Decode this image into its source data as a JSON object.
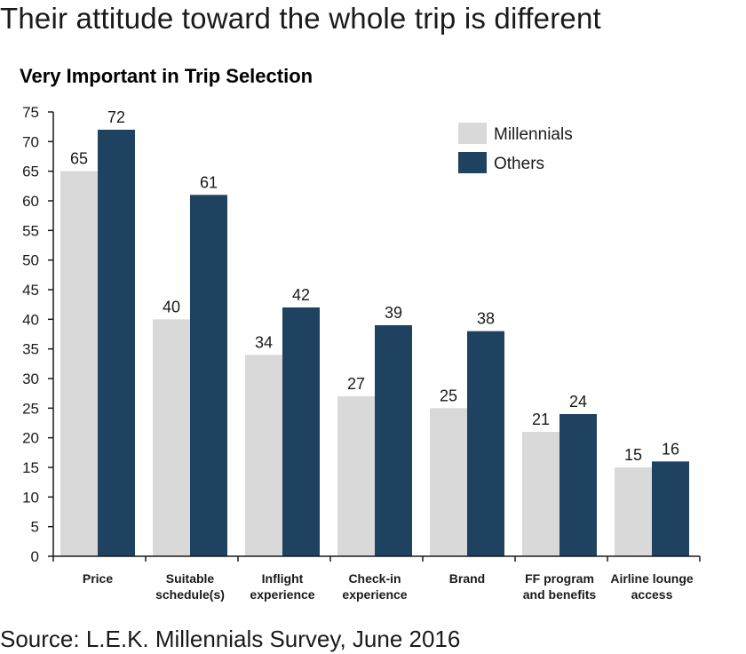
{
  "headline": "Their attitude toward the whole trip is different",
  "source": "Source: L.E.K. Millennials Survey, June 2016",
  "colors": {
    "millennials": "#d9d9d9",
    "others": "#1e4260",
    "axis": "#1a1a1a"
  },
  "chart_data": {
    "type": "bar",
    "title": "Very Important in Trip Selection",
    "xlabel": "",
    "ylabel": "",
    "ylim": [
      0,
      75
    ],
    "yticks": [
      0,
      5,
      10,
      15,
      20,
      25,
      30,
      35,
      40,
      45,
      50,
      55,
      60,
      65,
      70,
      75
    ],
    "grid": false,
    "legend": "top-right",
    "categories": [
      [
        "Price"
      ],
      [
        "Suitable",
        "schedule(s)"
      ],
      [
        "Inflight",
        "experience"
      ],
      [
        "Check-in",
        "experience"
      ],
      [
        "Brand"
      ],
      [
        "FF program",
        "and benefits"
      ],
      [
        "Airline lounge",
        "access"
      ]
    ],
    "series": [
      {
        "name": "Millennials",
        "values": [
          65,
          40,
          34,
          27,
          25,
          21,
          15
        ]
      },
      {
        "name": "Others",
        "values": [
          72,
          61,
          42,
          39,
          38,
          24,
          16
        ]
      }
    ]
  }
}
